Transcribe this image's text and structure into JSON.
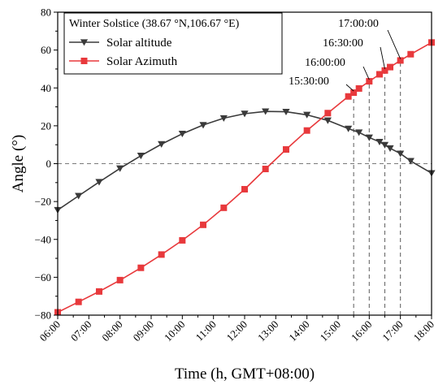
{
  "chart_data": {
    "type": "line",
    "xlabel": "Time (h, GMT+08:00)",
    "ylabel": "Angle (°)",
    "xlim": [
      6,
      18
    ],
    "ylim": [
      -80,
      80
    ],
    "x_ticks": [
      6,
      7,
      8,
      9,
      10,
      11,
      12,
      13,
      14,
      15,
      16,
      17,
      18
    ],
    "x_tick_labels": [
      "06:00",
      "07:00",
      "08:00",
      "09:00",
      "10:00",
      "11:00",
      "12:00",
      "13:00",
      "14:00",
      "15:00",
      "16:00",
      "17:00",
      "18:00"
    ],
    "y_ticks": [
      -80,
      -60,
      -40,
      -20,
      0,
      20,
      40,
      60,
      80
    ],
    "y_tick_labels": [
      "−80",
      "−60",
      "−40",
      "−20",
      "0",
      "20",
      "40",
      "60",
      "80"
    ],
    "legend": {
      "title": "Winter Solstice (38.67 °N,106.67 °E)",
      "placement": "top-left"
    },
    "series": [
      {
        "name": "Solar altitude",
        "marker": "triangle-down",
        "color": "#3a3a3a",
        "points": [
          [
            6.0,
            -24.5
          ],
          [
            6.67,
            -17.0
          ],
          [
            7.33,
            -9.7
          ],
          [
            8.0,
            -2.5
          ],
          [
            8.67,
            4.2
          ],
          [
            9.33,
            10.3
          ],
          [
            10.0,
            15.8
          ],
          [
            10.67,
            20.4
          ],
          [
            11.33,
            24.0
          ],
          [
            12.0,
            26.4
          ],
          [
            12.67,
            27.6
          ],
          [
            13.33,
            27.4
          ],
          [
            14.0,
            25.8
          ],
          [
            14.67,
            22.8
          ],
          [
            15.33,
            18.5
          ],
          [
            15.67,
            16.5
          ],
          [
            16.0,
            13.8
          ],
          [
            16.33,
            11.5
          ],
          [
            16.5,
            9.9
          ],
          [
            16.67,
            8.1
          ],
          [
            17.0,
            5.3
          ],
          [
            17.33,
            1.4
          ],
          [
            18.0,
            -5.0
          ]
        ]
      },
      {
        "name": "Solar Azimuth",
        "marker": "square",
        "color": "#e8393c",
        "points": [
          [
            6.0,
            -78.5
          ],
          [
            6.67,
            -73.0
          ],
          [
            7.33,
            -67.5
          ],
          [
            8.0,
            -61.5
          ],
          [
            8.67,
            -55.0
          ],
          [
            9.33,
            -48.0
          ],
          [
            10.0,
            -40.5
          ],
          [
            10.67,
            -32.3
          ],
          [
            11.33,
            -23.3
          ],
          [
            12.0,
            -13.5
          ],
          [
            12.67,
            -2.8
          ],
          [
            13.33,
            7.5
          ],
          [
            14.0,
            17.5
          ],
          [
            14.67,
            26.7
          ],
          [
            15.33,
            35.5
          ],
          [
            15.5,
            37.5
          ],
          [
            15.67,
            39.7
          ],
          [
            16.0,
            43.5
          ],
          [
            16.33,
            47.2
          ],
          [
            16.5,
            49.2
          ],
          [
            16.67,
            51.0
          ],
          [
            17.0,
            54.5
          ],
          [
            17.33,
            57.8
          ],
          [
            18.0,
            64.0
          ]
        ]
      }
    ],
    "reference_lines": {
      "horizontal": [
        0
      ],
      "vertical": [
        15.5,
        16.0,
        16.5,
        17.0
      ]
    },
    "annotations": [
      {
        "text": "15:30:00",
        "x": 15.5
      },
      {
        "text": "16:00:00",
        "x": 16.0
      },
      {
        "text": "16:30:00",
        "x": 16.5
      },
      {
        "text": "17:00:00",
        "x": 17.0
      }
    ],
    "grid": false
  }
}
